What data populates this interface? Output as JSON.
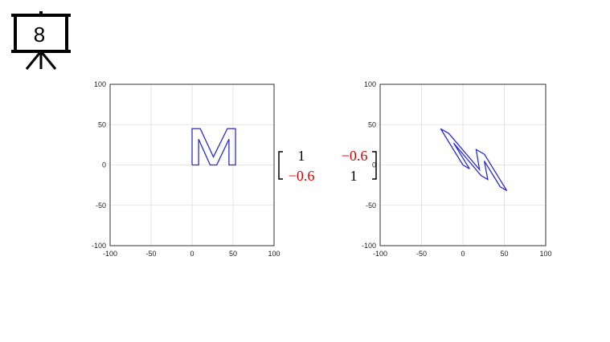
{
  "slide_number": "8",
  "matrix": {
    "rows": [
      [
        "1",
        "−0.6"
      ],
      [
        "−0.6",
        "1"
      ]
    ]
  },
  "chart_data": [
    {
      "type": "line",
      "x": [
        0,
        0,
        10,
        26,
        43,
        53,
        53,
        45,
        45,
        30,
        22,
        8,
        8,
        0
      ],
      "values": [
        0,
        45,
        45,
        10,
        45,
        45,
        0,
        0,
        32,
        0,
        0,
        32,
        0,
        0
      ],
      "color": "#2b2bd9",
      "xlim": [
        -100,
        100
      ],
      "ylim": [
        -100,
        100
      ],
      "xticks": [
        -100,
        -50,
        0,
        50,
        100
      ],
      "yticks": [
        -100,
        -50,
        0,
        50,
        100
      ],
      "grid": true
    },
    {
      "type": "line",
      "x": [
        0,
        -27,
        -17,
        20,
        16,
        26,
        53,
        45,
        25.8,
        30,
        22,
        -11.2,
        8,
        0
      ],
      "values": [
        0,
        45,
        39,
        -5.6,
        19.2,
        13.2,
        -31.8,
        -27,
        5,
        -18,
        -13.2,
        27.2,
        -4.8,
        0
      ],
      "color": "#2b2bd9",
      "xlim": [
        -100,
        100
      ],
      "ylim": [
        -100,
        100
      ],
      "xticks": [
        -100,
        -50,
        0,
        50,
        100
      ],
      "yticks": [
        -100,
        -50,
        0,
        50,
        100
      ],
      "grid": true
    }
  ]
}
